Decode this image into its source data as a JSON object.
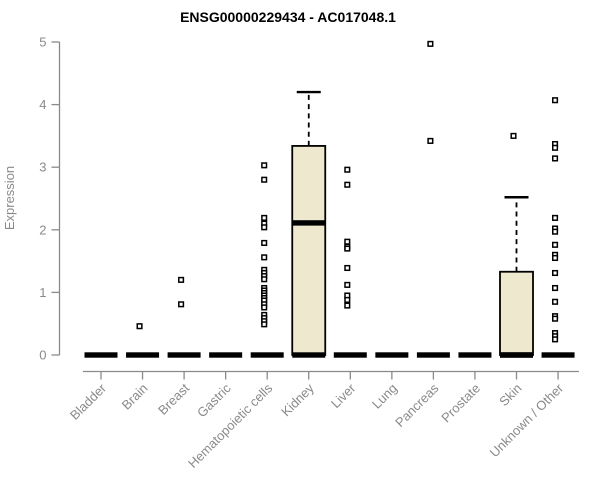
{
  "chart_data": {
    "type": "boxplot",
    "title": "ENSG00000229434 - AC017048.1",
    "ylabel": "Expression",
    "xlabel": "",
    "ylim": [
      0,
      5
    ],
    "yticks": [
      0,
      1,
      2,
      3,
      4,
      5
    ],
    "grid": false,
    "legend": "none",
    "axis_color": "#8a8a8a",
    "data_color": "#000000",
    "box_fill_color": "#EDE8CE",
    "point_fill_color": "#ffffff",
    "categories": [
      "Bladder",
      "Brain",
      "Breast",
      "Gastric",
      "Hematopoietic cells",
      "Kidney",
      "Liver",
      "Lung",
      "Pancreas",
      "Prostate",
      "Skin",
      "Unknown / Other"
    ],
    "boxes": [
      {
        "category": "Bladder",
        "whisker_low": 0,
        "q1": 0,
        "median": 0,
        "q3": 0,
        "whisker_high": 0,
        "points": []
      },
      {
        "category": "Brain",
        "whisker_low": 0,
        "q1": 0,
        "median": 0,
        "q3": 0,
        "whisker_high": 0,
        "points": [
          0.46
        ]
      },
      {
        "category": "Breast",
        "whisker_low": 0,
        "q1": 0,
        "median": 0,
        "q3": 0,
        "whisker_high": 0,
        "points": [
          1.2,
          0.81
        ]
      },
      {
        "category": "Gastric",
        "whisker_low": 0,
        "q1": 0,
        "median": 0,
        "q3": 0,
        "whisker_high": 0,
        "points": []
      },
      {
        "category": "Hematopoietic cells",
        "whisker_low": 0,
        "q1": 0,
        "median": 0,
        "q3": 0,
        "whisker_high": 0,
        "points": [
          3.03,
          2.8,
          2.19,
          2.1,
          2.04,
          1.79,
          1.56,
          1.36,
          1.31,
          1.26,
          1.21,
          1.07,
          1.03,
          0.99,
          0.95,
          0.91,
          0.87,
          0.81,
          0.76,
          0.64,
          0.59,
          0.54,
          0.49
        ]
      },
      {
        "category": "Kidney",
        "whisker_low": 0,
        "q1": 0,
        "median": 2.11,
        "q3": 3.34,
        "whisker_high": 4.2,
        "points": []
      },
      {
        "category": "Liver",
        "whisker_low": 0,
        "q1": 0,
        "median": 0,
        "q3": 0,
        "whisker_high": 0,
        "points": [
          2.96,
          2.72,
          1.81,
          1.73,
          1.7,
          1.39,
          1.12,
          0.95,
          0.88,
          0.79
        ]
      },
      {
        "category": "Lung",
        "whisker_low": 0,
        "q1": 0,
        "median": 0,
        "q3": 0,
        "whisker_high": 0,
        "points": []
      },
      {
        "category": "Pancreas",
        "whisker_low": 0,
        "q1": 0,
        "median": 0,
        "q3": 0,
        "whisker_high": 0,
        "points": [
          4.97,
          3.42
        ]
      },
      {
        "category": "Prostate",
        "whisker_low": 0,
        "q1": 0,
        "median": 0,
        "q3": 0,
        "whisker_high": 0,
        "points": []
      },
      {
        "category": "Skin",
        "whisker_low": 0,
        "q1": 0,
        "median": 0,
        "q3": 1.33,
        "whisker_high": 2.52,
        "points": [
          3.5
        ]
      },
      {
        "category": "Unknown / Other",
        "whisker_low": 0,
        "q1": 0,
        "median": 0,
        "q3": 0,
        "whisker_high": 0,
        "points": [
          4.07,
          3.37,
          3.31,
          3.14,
          2.19,
          2.02,
          1.97,
          1.76,
          1.6,
          1.55,
          1.31,
          1.07,
          0.85,
          0.62,
          0.58,
          0.35,
          0.3,
          0.25
        ]
      }
    ]
  }
}
